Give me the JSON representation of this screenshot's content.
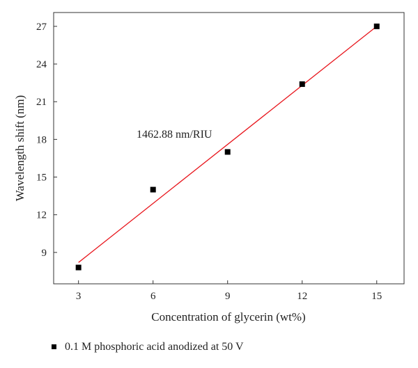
{
  "chart_data": {
    "type": "scatter",
    "xlabel": "Concentration of glycerin (wt%)",
    "ylabel": "Wavelength shift (nm)",
    "xlim": [
      2,
      16.1
    ],
    "ylim": [
      6.5,
      28.1
    ],
    "x_ticks": [
      3,
      6,
      9,
      12,
      15
    ],
    "y_ticks": [
      9,
      12,
      15,
      18,
      21,
      24,
      27
    ],
    "grid": false,
    "series": [
      {
        "name": "0.1 M phosphoric acid anodized at 50 V",
        "x": [
          3,
          6,
          9,
          12,
          15
        ],
        "y": [
          7.8,
          14.0,
          17.0,
          22.4,
          27.0
        ],
        "color": "#000000",
        "marker": "square"
      }
    ],
    "fit_line": {
      "x": [
        3,
        15
      ],
      "y": [
        8.2,
        27.0
      ],
      "color": "#e8141b"
    },
    "annotation": "1462.88 nm/RIU",
    "legend": {
      "position": "bottom-left",
      "entries": [
        "0.1 M phosphoric acid anodized at 50 V"
      ]
    }
  }
}
